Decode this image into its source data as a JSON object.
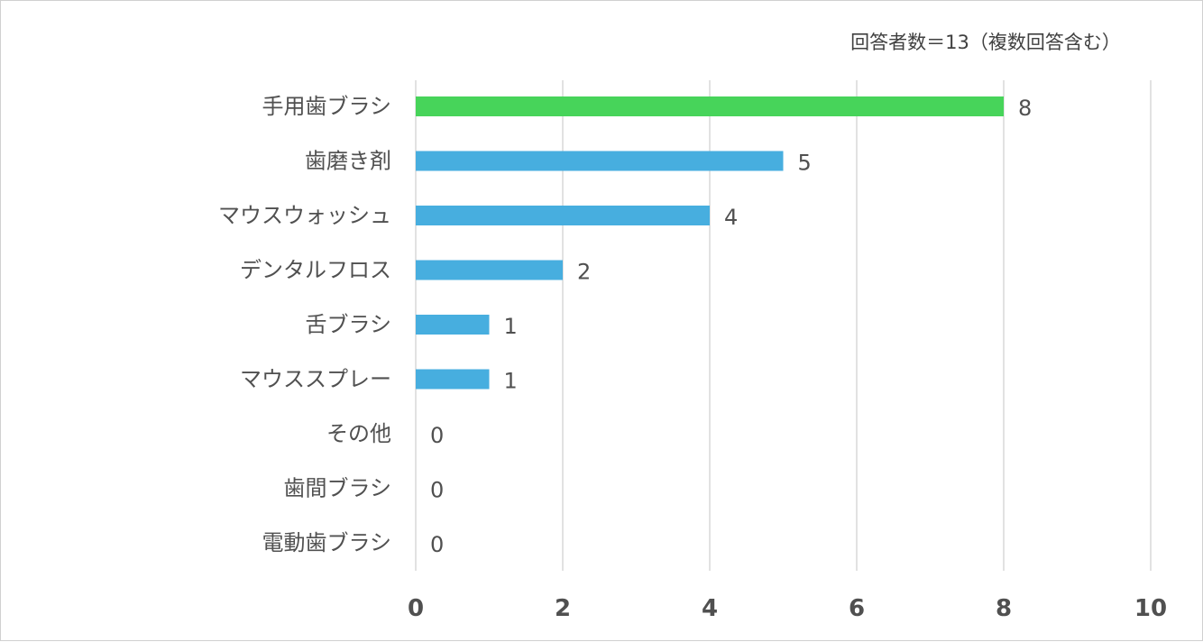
{
  "chart_data": {
    "type": "bar",
    "orientation": "horizontal",
    "note": "回答者数＝13（複数回答含む）",
    "categories": [
      "手用歯ブラシ",
      "歯磨き剤",
      "マウスウォッシュ",
      "デンタルフロス",
      "舌ブラシ",
      "マウススプレー",
      "その他",
      "歯間ブラシ",
      "電動歯ブラシ"
    ],
    "values": [
      8,
      5,
      4,
      2,
      1,
      1,
      0,
      0,
      0
    ],
    "bar_colors": [
      "#47d45a",
      "#47aedf",
      "#47aedf",
      "#47aedf",
      "#47aedf",
      "#47aedf",
      "#47aedf",
      "#47aedf",
      "#47aedf"
    ],
    "xlim": [
      0,
      10
    ],
    "xticks": [
      0,
      2,
      4,
      6,
      8,
      10
    ],
    "grid": "vertical",
    "legend": "none",
    "xlabel": "",
    "ylabel": "",
    "title": ""
  }
}
